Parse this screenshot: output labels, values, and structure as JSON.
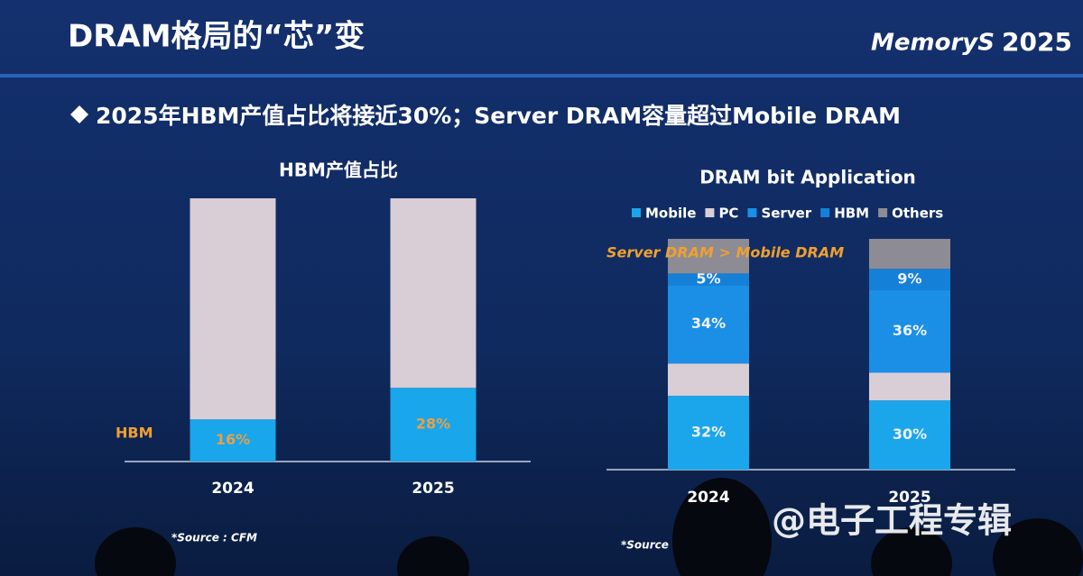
{
  "slide": {
    "title": "DRAM格局的“芯”变",
    "subtitle": "2025年HBM产值占比将接近30%；Server DRAM容量超过Mobile DRAM",
    "logo": "MemoryS",
    "logo_year": "2025",
    "sources": [
      "*Source : CFM",
      "*Source ."
    ],
    "watermark": "@电子工程专辑"
  },
  "chart_data": [
    {
      "type": "stacked-bar",
      "title": "HBM产值占比",
      "categories": [
        "2024",
        "2025"
      ],
      "series": [
        {
          "name": "HBM",
          "color": "#1aa6ea",
          "values": [
            16,
            28
          ],
          "value_labels": [
            "16%",
            "28%"
          ]
        },
        {
          "color": "#d9ced6",
          "values": [
            84,
            72
          ]
        }
      ]
    },
    {
      "type": "stacked-bar",
      "title": "DRAM bit Application",
      "categories": [
        "2024",
        "2025"
      ],
      "annotation": "Server DRAM > Mobile DRAM",
      "series": [
        {
          "name": "Mobile",
          "color": "#1ba6ec",
          "values": [
            32,
            30
          ],
          "value_labels": [
            "32%",
            "30%"
          ]
        },
        {
          "name": "PC",
          "color": "#d9ced6",
          "values": [
            14,
            12
          ]
        },
        {
          "name": "Server",
          "color": "#1b8fe6",
          "values": [
            34,
            36
          ],
          "value_labels": [
            "34%",
            "36%"
          ]
        },
        {
          "name": "HBM",
          "color": "#1580d8",
          "values": [
            5,
            9
          ],
          "value_labels": [
            "5%",
            "9%"
          ]
        },
        {
          "name": "Others",
          "color": "#8d8c94",
          "values": [
            15,
            13
          ]
        }
      ]
    }
  ]
}
